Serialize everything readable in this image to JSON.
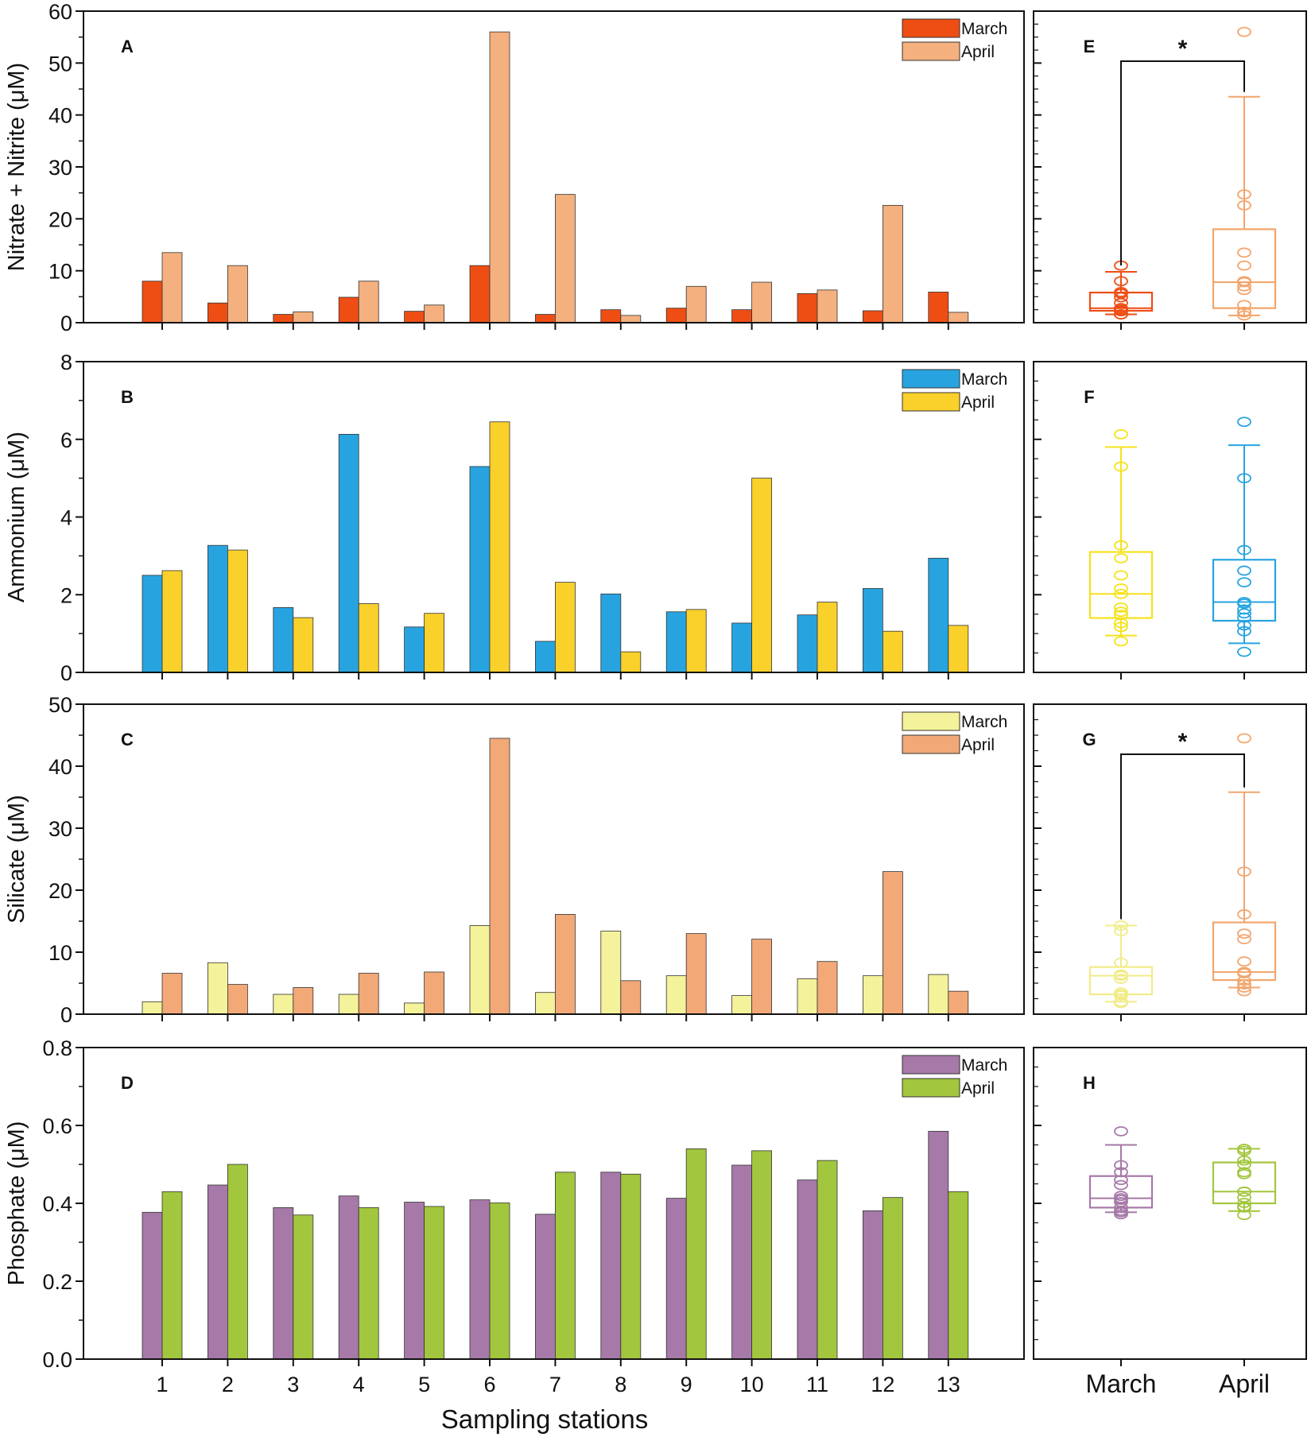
{
  "figure": {
    "x_axis_label": "Sampling stations",
    "box_categories": [
      "March",
      "April"
    ]
  },
  "chart_data": [
    {
      "id": "A",
      "type": "bar",
      "panel": "A",
      "ylabel": "Nitrate + Nitrite (μM)",
      "ylim": [
        0,
        60
      ],
      "yticks": [
        0,
        10,
        20,
        30,
        40,
        50,
        60
      ],
      "categories": [
        "1",
        "2",
        "3",
        "4",
        "5",
        "6",
        "7",
        "8",
        "9",
        "10",
        "11",
        "12",
        "13"
      ],
      "series": [
        {
          "name": "March",
          "color": "#ee4e14",
          "values": [
            8.0,
            3.8,
            1.6,
            4.9,
            2.2,
            11.0,
            1.6,
            2.5,
            2.8,
            2.5,
            5.6,
            2.3,
            5.9
          ]
        },
        {
          "name": "April",
          "color": "#f4b07e",
          "values": [
            13.5,
            11.0,
            2.1,
            8.0,
            3.4,
            56.0,
            24.7,
            1.4,
            7.0,
            7.8,
            6.3,
            22.6,
            2.0
          ]
        }
      ],
      "legend": "top-right"
    },
    {
      "id": "B",
      "type": "bar",
      "panel": "B",
      "ylabel": "Ammonium (μM)",
      "ylim": [
        0,
        8
      ],
      "yticks": [
        0,
        2,
        4,
        6,
        8
      ],
      "categories": [
        "1",
        "2",
        "3",
        "4",
        "5",
        "6",
        "7",
        "8",
        "9",
        "10",
        "11",
        "12",
        "13"
      ],
      "series": [
        {
          "name": "March",
          "color": "#27a4e0",
          "values": [
            2.5,
            3.27,
            1.67,
            6.13,
            1.17,
            5.3,
            0.8,
            2.02,
            1.56,
            1.27,
            1.48,
            2.16,
            2.94
          ]
        },
        {
          "name": "April",
          "color": "#fad02a",
          "values": [
            2.62,
            3.15,
            1.41,
            1.77,
            1.52,
            6.45,
            2.32,
            0.53,
            1.62,
            5.0,
            1.81,
            1.06,
            1.21
          ]
        }
      ],
      "legend": "top-right"
    },
    {
      "id": "C",
      "type": "bar",
      "panel": "C",
      "ylabel": "Silicate (μM)",
      "ylim": [
        0,
        50
      ],
      "yticks": [
        0,
        10,
        20,
        30,
        40,
        50
      ],
      "categories": [
        "1",
        "2",
        "3",
        "4",
        "5",
        "6",
        "7",
        "8",
        "9",
        "10",
        "11",
        "12",
        "13"
      ],
      "series": [
        {
          "name": "March",
          "color": "#f4f29a",
          "values": [
            2.0,
            8.3,
            3.2,
            3.2,
            1.8,
            14.3,
            3.5,
            13.4,
            6.2,
            3.0,
            5.7,
            6.2,
            6.4
          ]
        },
        {
          "name": "April",
          "color": "#f2a877",
          "values": [
            6.6,
            4.8,
            4.3,
            6.6,
            6.8,
            44.5,
            16.1,
            5.4,
            13.0,
            12.1,
            8.5,
            23.0,
            3.7
          ]
        }
      ],
      "legend": "top-right"
    },
    {
      "id": "D",
      "type": "bar",
      "panel": "D",
      "ylabel": "Phosphate (μM)",
      "ylim": [
        0,
        0.8
      ],
      "yticks": [
        0.0,
        0.2,
        0.4,
        0.6,
        0.8
      ],
      "ytick_labels": [
        "0.0",
        "0.2",
        "0.4",
        "0.6",
        "0.8"
      ],
      "categories": [
        "1",
        "2",
        "3",
        "4",
        "5",
        "6",
        "7",
        "8",
        "9",
        "10",
        "11",
        "12",
        "13"
      ],
      "series": [
        {
          "name": "March",
          "color": "#a679a8",
          "values": [
            0.377,
            0.447,
            0.389,
            0.419,
            0.403,
            0.409,
            0.372,
            0.48,
            0.413,
            0.498,
            0.46,
            0.381,
            0.585
          ]
        },
        {
          "name": "April",
          "color": "#a2c63d",
          "values": [
            0.43,
            0.5,
            0.37,
            0.389,
            0.392,
            0.401,
            0.48,
            0.475,
            0.54,
            0.535,
            0.51,
            0.415,
            0.43
          ]
        }
      ],
      "legend": "top-right"
    },
    {
      "id": "E",
      "type": "box",
      "panel": "E",
      "ylim": [
        0,
        60
      ],
      "categories": [
        "March",
        "April"
      ],
      "boxes": [
        {
          "name": "March",
          "color": "#ee4e14",
          "whisker_low": 1.6,
          "q1": 2.3,
          "median": 2.8,
          "q3": 5.8,
          "whisker_high": 9.8,
          "points": [
            1.6,
            1.6,
            2.2,
            2.3,
            2.5,
            2.5,
            2.8,
            3.8,
            4.9,
            5.6,
            5.9,
            8.0,
            11.0
          ]
        },
        {
          "name": "April",
          "color": "#f4a46a",
          "whisker_low": 1.4,
          "q1": 2.8,
          "median": 7.8,
          "q3": 18.0,
          "whisker_high": 43.5,
          "points": [
            1.4,
            2.0,
            2.1,
            3.4,
            6.3,
            7.0,
            7.8,
            8.0,
            11.0,
            13.5,
            22.6,
            24.7,
            56.0
          ]
        }
      ],
      "significance": "*"
    },
    {
      "id": "F",
      "type": "box",
      "panel": "F",
      "ylim": [
        0,
        8
      ],
      "categories": [
        "March",
        "April"
      ],
      "boxes": [
        {
          "name": "March",
          "color": "#f5e21a",
          "whisker_low": 0.95,
          "q1": 1.4,
          "median": 2.02,
          "q3": 3.1,
          "whisker_high": 5.8,
          "points": [
            0.8,
            1.17,
            1.27,
            1.48,
            1.56,
            1.67,
            2.02,
            2.16,
            2.5,
            2.94,
            3.27,
            5.3,
            6.13
          ]
        },
        {
          "name": "April",
          "color": "#27a4e0",
          "whisker_low": 0.75,
          "q1": 1.33,
          "median": 1.81,
          "q3": 2.9,
          "whisker_high": 5.85,
          "points": [
            0.53,
            1.06,
            1.21,
            1.41,
            1.52,
            1.62,
            1.77,
            1.81,
            2.32,
            2.62,
            3.15,
            5.0,
            6.45
          ]
        }
      ]
    },
    {
      "id": "G",
      "type": "box",
      "panel": "G",
      "ylim": [
        0,
        50
      ],
      "categories": [
        "March",
        "April"
      ],
      "boxes": [
        {
          "name": "March",
          "color": "#f1ec88",
          "whisker_low": 2.0,
          "q1": 3.2,
          "median": 6.2,
          "q3": 7.6,
          "whisker_high": 14.3,
          "points": [
            1.8,
            2.0,
            3.0,
            3.2,
            3.2,
            3.5,
            5.7,
            6.2,
            6.2,
            6.4,
            8.3,
            13.4,
            14.3
          ]
        },
        {
          "name": "April",
          "color": "#f2a66e",
          "whisker_low": 4.3,
          "q1": 5.5,
          "median": 6.8,
          "q3": 14.8,
          "whisker_high": 35.8,
          "points": [
            3.7,
            4.3,
            4.8,
            5.4,
            6.6,
            6.6,
            6.8,
            8.5,
            12.1,
            13.0,
            16.1,
            23.0,
            44.5
          ]
        }
      ],
      "significance": "*"
    },
    {
      "id": "H",
      "type": "box",
      "panel": "H",
      "ylim": [
        0,
        0.8
      ],
      "categories": [
        "March",
        "April"
      ],
      "boxes": [
        {
          "name": "March",
          "color": "#a679a8",
          "whisker_low": 0.377,
          "q1": 0.389,
          "median": 0.413,
          "q3": 0.47,
          "whisker_high": 0.55,
          "points": [
            0.372,
            0.377,
            0.381,
            0.389,
            0.403,
            0.409,
            0.413,
            0.419,
            0.447,
            0.46,
            0.48,
            0.498,
            0.585
          ]
        },
        {
          "name": "April",
          "color": "#a2c63d",
          "whisker_low": 0.38,
          "q1": 0.4,
          "median": 0.43,
          "q3": 0.505,
          "whisker_high": 0.54,
          "points": [
            0.37,
            0.389,
            0.392,
            0.401,
            0.415,
            0.43,
            0.43,
            0.475,
            0.48,
            0.5,
            0.51,
            0.535,
            0.54
          ]
        }
      ]
    }
  ]
}
